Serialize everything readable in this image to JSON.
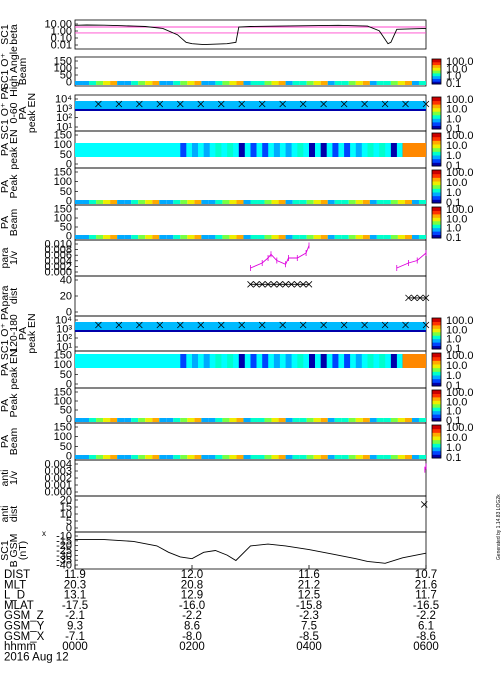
{
  "chart_data": {
    "type": "line",
    "title": "",
    "time_axis": {
      "ticks": [
        "0000",
        "0200",
        "0400",
        "0600"
      ],
      "date": "2016 Aug 12"
    },
    "panels": [
      {
        "id": "beta",
        "ylabel": [
          "SC1",
          "beta"
        ],
        "yticks": [
          "10.00",
          "1.00",
          "0.10",
          "0.01"
        ],
        "log": true,
        "series": [
          {
            "t": [
              0.0,
              0.2,
              0.5,
              0.8,
              1.0,
              1.2,
              1.5,
              1.75,
              1.9,
              2.0,
              2.2,
              2.6,
              2.75,
              2.8,
              3.0,
              3.5,
              4.0,
              4.5,
              5.0,
              5.2,
              5.35,
              5.4,
              5.5,
              6.0
            ],
            "v": [
              5,
              5.5,
              5.2,
              4.5,
              4,
              3.5,
              2,
              0.3,
              0.03,
              0.02,
              0.015,
              0.02,
              0.03,
              3,
              3.5,
              4,
              4.5,
              5,
              4,
              1,
              0.02,
              0.03,
              1.5,
              2
            ]
          }
        ],
        "reference_lines": [
          3,
          0.5
        ]
      },
      {
        "id": "hi_angle",
        "ylabel": [
          "SC1 O⁺",
          "High Angle",
          "Beam"
        ],
        "yticks": [
          "150",
          "100",
          "50",
          "0"
        ],
        "colorbar": [
          "100.0",
          "10.0",
          "1.0",
          "0.1"
        ]
      },
      {
        "id": "pa_para",
        "ylabel": [
          "SC1 O⁺ PA",
          "0-60",
          "PA",
          "peak EN"
        ],
        "yticks": [
          "10⁴",
          "10³",
          "10²",
          "10¹"
        ],
        "colorbar": [
          "100.0",
          "10.0",
          "1.0",
          "0.1"
        ]
      },
      {
        "id": "peak_pa_para",
        "ylabel": [
          "PA",
          "peak EN"
        ],
        "yticks": [
          "150",
          "100",
          "50",
          "0"
        ],
        "colorbar": [
          "100.0",
          "10.0",
          "1.0",
          "0.1"
        ]
      },
      {
        "id": "peak_pa2",
        "ylabel": [
          "PA",
          "Peak"
        ],
        "yticks": [
          "150",
          "100",
          "50",
          "0"
        ],
        "colorbar": [
          "100.0",
          "10.0",
          "1.0",
          "0.1"
        ]
      },
      {
        "id": "beam_para",
        "ylabel": [
          "PA",
          "Beam"
        ],
        "yticks": [
          "150",
          "100",
          "50",
          "0"
        ],
        "colorbar": [
          "100.0",
          "10.0",
          "1.0",
          "0.1"
        ]
      },
      {
        "id": "inv_v_para",
        "ylabel": [
          "para",
          "1/v"
        ],
        "yticks": [
          "0.010",
          "0.008",
          "0.006",
          "0.004",
          "0.002",
          "0.000"
        ],
        "series": [
          {
            "t": [
              3.0,
              3.2,
              3.3,
              3.35,
              3.45,
              3.6,
              3.65,
              3.8,
              3.95,
              4.0
            ],
            "v": [
              0.002,
              0.004,
              0.006,
              0.0075,
              0.005,
              0.0035,
              0.006,
              0.006,
              0.008,
              0.011
            ]
          },
          {
            "t": [
              5.5,
              5.7,
              5.85,
              6.0
            ],
            "v": [
              0.002,
              0.004,
              0.005,
              0.008
            ]
          }
        ]
      },
      {
        "id": "dist_para",
        "ylabel": [
          "para",
          "dist"
        ],
        "yticks": [
          "40",
          "20",
          "0"
        ],
        "series": [
          {
            "t": [
              3.0,
              3.1,
              3.2,
              3.3,
              3.4,
              3.5,
              3.6,
              3.7,
              3.8,
              3.9,
              4.0
            ],
            "v": [
              38,
              38,
              38,
              38,
              38,
              38,
              38,
              38,
              38,
              38,
              38
            ]
          },
          {
            "t": [
              5.7,
              5.8,
              5.9,
              6.0
            ],
            "v": [
              20,
              20,
              20,
              20
            ]
          }
        ]
      },
      {
        "id": "pa_anti",
        "ylabel": [
          "SC1 O⁺ PA",
          "120-180",
          "PA",
          "peak EN"
        ],
        "yticks": [
          "10⁴",
          "10³",
          "10²",
          "10¹"
        ],
        "colorbar": [
          "100.0",
          "10.0",
          "1.0",
          "0.1"
        ]
      },
      {
        "id": "peak_pa_anti",
        "ylabel": [
          "PA",
          "peak EN"
        ],
        "yticks": [
          "150",
          "100",
          "50",
          "0"
        ],
        "colorbar": [
          "100.0",
          "10.0",
          "1.0",
          "0.1"
        ]
      },
      {
        "id": "peak_pa_anti2",
        "ylabel": [
          "PA",
          "Peak"
        ],
        "yticks": [
          "150",
          "100",
          "50",
          "0"
        ],
        "colorbar": [
          "100.0",
          "10.0",
          "1.0",
          "0.1"
        ]
      },
      {
        "id": "beam_anti",
        "ylabel": [
          "PA",
          "Beam"
        ],
        "yticks": [
          "150",
          "100",
          "50",
          "0"
        ],
        "colorbar": [
          "100.0",
          "10.0",
          "1.0",
          "0.1"
        ]
      },
      {
        "id": "inv_v_anti",
        "ylabel": [
          "anti",
          "1/v"
        ],
        "yticks": [
          "0.004",
          "0.003",
          "0.002",
          "0.001",
          "0.000"
        ],
        "series": [
          {
            "t": [
              5.98,
              6.0
            ],
            "v": [
              0.0035,
              0.004
            ]
          }
        ]
      },
      {
        "id": "dist_anti",
        "ylabel": [
          "anti",
          "dist"
        ],
        "yticks": [
          "20",
          "15",
          "10",
          "5",
          "0"
        ],
        "series": [
          {
            "t": [
              5.97
            ],
            "v": [
              18
            ]
          }
        ]
      },
      {
        "id": "bgsm",
        "ylabel": [
          "SC1",
          "B GSM",
          "(nT)"
        ],
        "ysub": "x",
        "yticks": [
          "-10",
          "-15",
          "-20",
          "-25",
          "-30",
          "-35",
          "-40"
        ],
        "series": [
          {
            "t": [
              0.0,
              0.5,
              1.0,
              1.4,
              1.6,
              1.8,
              2.0,
              2.2,
              2.4,
              2.6,
              2.75,
              3.0,
              3.3,
              3.6,
              4.0,
              4.4,
              4.8,
              5.0,
              5.3,
              5.6,
              6.0
            ],
            "v": [
              -13,
              -13,
              -15,
              -20,
              -27,
              -32,
              -34,
              -27,
              -25,
              -30,
              -36,
              -20,
              -18,
              -20,
              -24,
              -29,
              -34,
              -37,
              -39,
              -33,
              -28
            ]
          }
        ]
      }
    ],
    "ephemeris": {
      "labels": [
        "DIST",
        "MLT",
        "L_D",
        "MLAT",
        "GSM_Z",
        "GSM_Y",
        "GSM_X",
        "hhmm"
      ],
      "columns": [
        [
          "11.9",
          "20.3",
          "13.1",
          "-17.5",
          "-2.1",
          "9.3",
          "-7.1",
          "0000"
        ],
        [
          "12.0",
          "20.8",
          "12.9",
          "-16.0",
          "-2.2",
          "8.6",
          "-8.0",
          "0200"
        ],
        [
          "11.6",
          "21.2",
          "12.5",
          "-15.8",
          "-2.3",
          "7.5",
          "-8.5",
          "0400"
        ],
        [
          "10.7",
          "21.6",
          "11.7",
          "-16.5",
          "-2.2",
          "6.1",
          "-8.6",
          "0600"
        ]
      ]
    },
    "colors": {
      "pink": "#ff44cc",
      "magenta": "#dd00dd",
      "line": "#000000"
    }
  },
  "side_note": "Generated by 1.14.83 LOG2k"
}
